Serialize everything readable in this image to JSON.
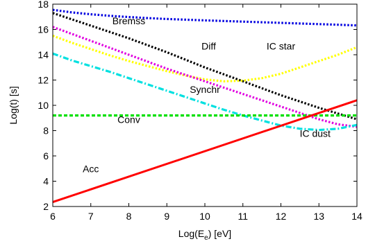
{
  "chart_data": {
    "type": "line",
    "title": "",
    "xlabel": "Log(E<sub>e</sub>) [eV]",
    "xlabel_main": "Log(E",
    "xlabel_sub": "e",
    "xlabel_tail": ") [eV]",
    "ylabel": "Log(t) [s]",
    "xlim": [
      6,
      14
    ],
    "ylim": [
      2,
      18
    ],
    "xticks": [
      6,
      7,
      8,
      9,
      10,
      11,
      12,
      13,
      14
    ],
    "yticks": [
      2,
      4,
      6,
      8,
      10,
      12,
      14,
      16,
      18
    ],
    "grid": false,
    "legend": "none (labels placed next to curves)",
    "series": [
      {
        "name": "Bremss",
        "color": "#0000e0",
        "style": "dotted",
        "x": [
          6,
          6.5,
          7,
          7.5,
          8,
          8.5,
          9,
          9.5,
          10,
          10.5,
          11,
          11.5,
          12,
          12.5,
          13,
          13.5,
          14
        ],
        "y": [
          17.55,
          17.35,
          17.2,
          17.08,
          16.98,
          16.9,
          16.83,
          16.77,
          16.72,
          16.67,
          16.62,
          16.57,
          16.52,
          16.47,
          16.42,
          16.37,
          16.32
        ]
      },
      {
        "name": "Diff",
        "color": "#000000",
        "style": "dotted",
        "x": [
          6,
          7,
          8,
          9,
          10,
          11,
          12,
          13,
          14
        ],
        "y": [
          17.3,
          16.3,
          15.3,
          14.2,
          13.0,
          11.9,
          10.8,
          9.8,
          8.9
        ]
      },
      {
        "name": "IC star",
        "color": "#ffff00",
        "style": "dotted",
        "x": [
          6,
          6.5,
          7,
          7.5,
          8,
          8.5,
          9,
          9.5,
          10,
          10.5,
          11,
          11.5,
          12,
          12.5,
          13,
          13.5,
          14
        ],
        "y": [
          15.5,
          14.95,
          14.45,
          13.95,
          13.5,
          13.1,
          12.7,
          12.35,
          12.05,
          11.9,
          11.95,
          12.15,
          12.5,
          13.0,
          13.5,
          14.0,
          14.6
        ]
      },
      {
        "name": "Synchr",
        "color": "#e000e0",
        "style": "dotted",
        "x": [
          6,
          7,
          8,
          9,
          10,
          11,
          12,
          13,
          13.5,
          14
        ],
        "y": [
          16.2,
          15.1,
          14.0,
          12.9,
          11.9,
          10.9,
          9.9,
          8.9,
          8.5,
          8.3
        ]
      },
      {
        "name": "IC dust",
        "color": "#00e0e0",
        "style": "dashdot",
        "x": [
          6,
          6.5,
          7,
          7.5,
          8,
          8.5,
          9,
          9.5,
          10,
          10.5,
          11,
          11.5,
          12,
          12.5,
          13,
          13.5,
          14
        ],
        "y": [
          14.1,
          13.55,
          13.1,
          12.65,
          12.15,
          11.65,
          11.15,
          10.65,
          10.15,
          9.65,
          9.2,
          8.8,
          8.4,
          8.15,
          8.05,
          8.15,
          8.45
        ]
      },
      {
        "name": "Conv",
        "color": "#00e000",
        "style": "dashed",
        "x": [
          6,
          14
        ],
        "y": [
          9.2,
          9.2
        ]
      },
      {
        "name": "Acc",
        "color": "#ff0000",
        "style": "solid",
        "x": [
          6,
          14
        ],
        "y": [
          2.35,
          10.4
        ]
      }
    ],
    "annotations": [
      {
        "text": "Bremss",
        "x": 8.0,
        "y": 16.4
      },
      {
        "text": "Diff",
        "x": 10.1,
        "y": 14.4
      },
      {
        "text": "IC star",
        "x": 12.0,
        "y": 14.4
      },
      {
        "text": "Synchr",
        "x": 10.0,
        "y": 11.0
      },
      {
        "text": "Conv",
        "x": 8.0,
        "y": 8.6
      },
      {
        "text": "IC dust",
        "x": 12.9,
        "y": 7.5
      },
      {
        "text": "Acc",
        "x": 7.0,
        "y": 4.7
      }
    ]
  }
}
